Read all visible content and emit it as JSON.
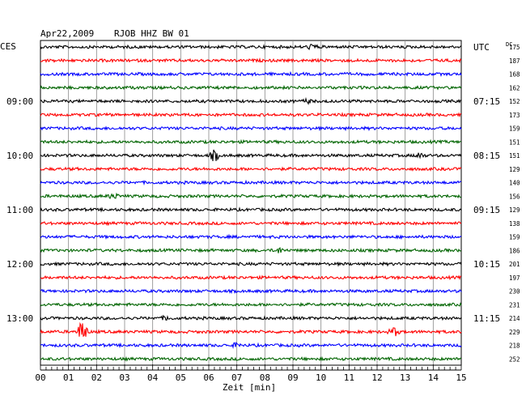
{
  "header": {
    "date": "Apr22,2009",
    "station": "RJOB HHZ BW 01",
    "left_tz": "CES",
    "right_tz": "UTC",
    "dc_label": "DC"
  },
  "chart_data": {
    "type": "line",
    "title": "Apr22,2009  RJOB HHZ BW 01",
    "xlabel": "Zeit [min]",
    "ylabel": "",
    "x_range": [
      0,
      15
    ],
    "x_ticks": [
      "00",
      "01",
      "02",
      "03",
      "04",
      "05",
      "06",
      "07",
      "08",
      "09",
      "10",
      "11",
      "12",
      "13",
      "14",
      "15"
    ],
    "grid": true,
    "trace_colors": [
      "#000000",
      "#ff0000",
      "#0000ff",
      "#006400"
    ],
    "left_time_labels": [
      {
        "row": 4,
        "text": "09:00"
      },
      {
        "row": 8,
        "text": "10:00"
      },
      {
        "row": 12,
        "text": "11:00"
      },
      {
        "row": 16,
        "text": "12:00"
      },
      {
        "row": 20,
        "text": "13:00"
      }
    ],
    "right_time_labels": [
      {
        "row": 0,
        "text": "UTC"
      },
      {
        "row": 4,
        "text": "07:15"
      },
      {
        "row": 8,
        "text": "08:15"
      },
      {
        "row": 12,
        "text": "09:15"
      },
      {
        "row": 16,
        "text": "10:15"
      },
      {
        "row": 20,
        "text": "11:15"
      }
    ],
    "dc_values": [
      "175",
      "187",
      "168",
      "162",
      "152",
      "173",
      "159",
      "151",
      "151",
      "129",
      "140",
      "156",
      "129",
      "138",
      "159",
      "186",
      "201",
      "197",
      "230",
      "231",
      "214",
      "229",
      "218",
      "252"
    ],
    "events": [
      {
        "row": 0,
        "minute": 9.7,
        "amplitude": 3
      },
      {
        "row": 4,
        "minute": 9.5,
        "amplitude": 2
      },
      {
        "row": 8,
        "minute": 6.2,
        "amplitude": 6
      },
      {
        "row": 8,
        "minute": 13.5,
        "amplitude": 3
      },
      {
        "row": 11,
        "minute": 2.6,
        "amplitude": 3
      },
      {
        "row": 15,
        "minute": 8.5,
        "amplitude": 3
      },
      {
        "row": 20,
        "minute": 4.5,
        "amplitude": 2
      },
      {
        "row": 21,
        "minute": 1.5,
        "amplitude": 14
      },
      {
        "row": 21,
        "minute": 12.6,
        "amplitude": 5
      },
      {
        "row": 22,
        "minute": 7.0,
        "amplitude": 2
      }
    ]
  }
}
